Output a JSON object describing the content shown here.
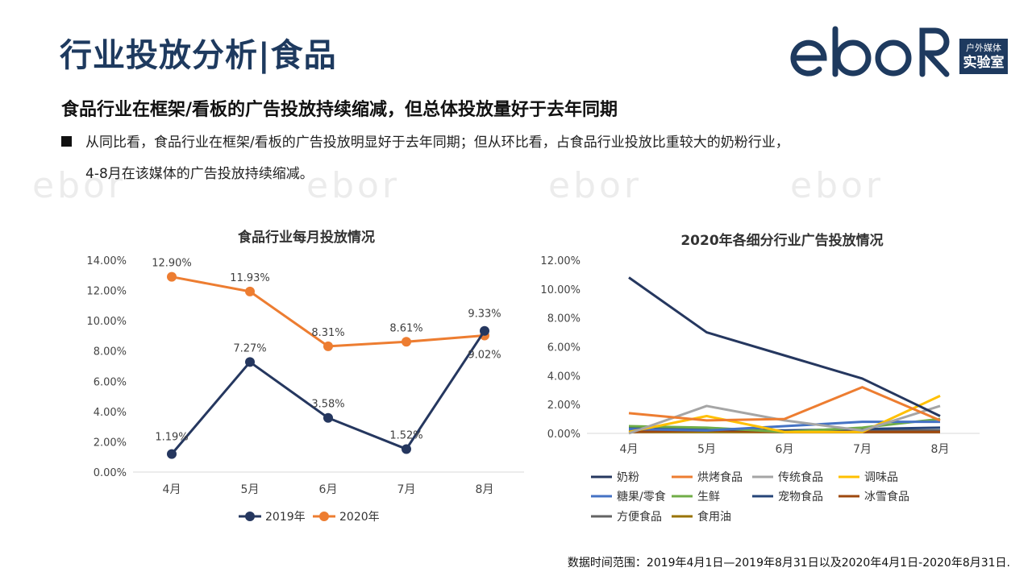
{
  "page": {
    "title": "行业投放分析|食品",
    "headline": "食品行业在框架/看板的广告投放持续缩减，但总体投放量好于去年同期",
    "body_line1": "从同比看，食品行业在框架/看板的广告投放明显好于去年同期；但从环比看，占食品行业投放比重较大的奶粉行业，",
    "body_line2": "4-8月在该媒体的广告投放持续缩减。",
    "footnote": "数据时间范围：2019年4月1日—2019年8月31日以及2020年4月1日-2020年8月31日."
  },
  "logo": {
    "wordmark": "ebor",
    "badge_line1": "户外媒体",
    "badge_line2": "实验室",
    "color": "#1e3a5f"
  },
  "chart_data": [
    {
      "type": "line",
      "title": "食品行业每月投放情况",
      "categories": [
        "4月",
        "5月",
        "6月",
        "7月",
        "8月"
      ],
      "ylim": [
        0,
        14
      ],
      "yticks": [
        0,
        2,
        4,
        6,
        8,
        10,
        12,
        14
      ],
      "ytick_labels": [
        "0.00%",
        "2.00%",
        "4.00%",
        "6.00%",
        "8.00%",
        "10.00%",
        "12.00%",
        "14.00%"
      ],
      "legend_position": "bottom",
      "series": [
        {
          "name": "2019年",
          "color": "#25375f",
          "values": [
            1.19,
            7.27,
            3.58,
            1.52,
            9.33
          ],
          "labels": [
            "1.19%",
            "7.27%",
            "3.58%",
            "1.52%",
            "9.33%"
          ]
        },
        {
          "name": "2020年",
          "color": "#ed7d31",
          "values": [
            12.9,
            11.93,
            8.31,
            8.61,
            9.02
          ],
          "labels": [
            "12.90%",
            "11.93%",
            "8.31%",
            "8.61%",
            "9.02%"
          ]
        }
      ]
    },
    {
      "type": "line",
      "title": "2020年各细分行业广告投放情况",
      "categories": [
        "4月",
        "5月",
        "6月",
        "7月",
        "8月"
      ],
      "ylim": [
        0,
        12
      ],
      "yticks": [
        0,
        2,
        4,
        6,
        8,
        10,
        12
      ],
      "ytick_labels": [
        "0.00%",
        "2.00%",
        "4.00%",
        "6.00%",
        "8.00%",
        "10.00%",
        "12.00%"
      ],
      "legend_position": "bottom",
      "series": [
        {
          "name": "奶粉",
          "color": "#25375f",
          "values": [
            10.8,
            7.0,
            5.4,
            3.8,
            1.2
          ]
        },
        {
          "name": "烘烤食品",
          "color": "#ed7d31",
          "values": [
            1.4,
            0.9,
            1.0,
            3.2,
            0.9
          ]
        },
        {
          "name": "传统食品",
          "color": "#a5a5a5",
          "values": [
            0.0,
            1.9,
            0.9,
            0.2,
            1.9
          ]
        },
        {
          "name": "调味品",
          "color": "#ffc000",
          "values": [
            0.1,
            1.2,
            0.1,
            0.1,
            2.6
          ]
        },
        {
          "name": "糖果/零食",
          "color": "#4472c4",
          "values": [
            0.3,
            0.2,
            0.5,
            0.8,
            0.8
          ]
        },
        {
          "name": "生鲜",
          "color": "#70ad47",
          "values": [
            0.5,
            0.4,
            0.1,
            0.4,
            1.0
          ]
        },
        {
          "name": "宠物食品",
          "color": "#264478",
          "values": [
            0.4,
            0.3,
            0.2,
            0.3,
            0.4
          ]
        },
        {
          "name": "冰雪食品",
          "color": "#9e480e",
          "values": [
            0.1,
            0.2,
            0.1,
            0.1,
            0.1
          ]
        },
        {
          "name": "方便食品",
          "color": "#636363",
          "values": [
            0.2,
            0.3,
            0.1,
            0.2,
            0.2
          ]
        },
        {
          "name": "食用油",
          "color": "#997300",
          "values": [
            0.1,
            0.1,
            0.1,
            0.1,
            0.1
          ]
        }
      ]
    }
  ]
}
